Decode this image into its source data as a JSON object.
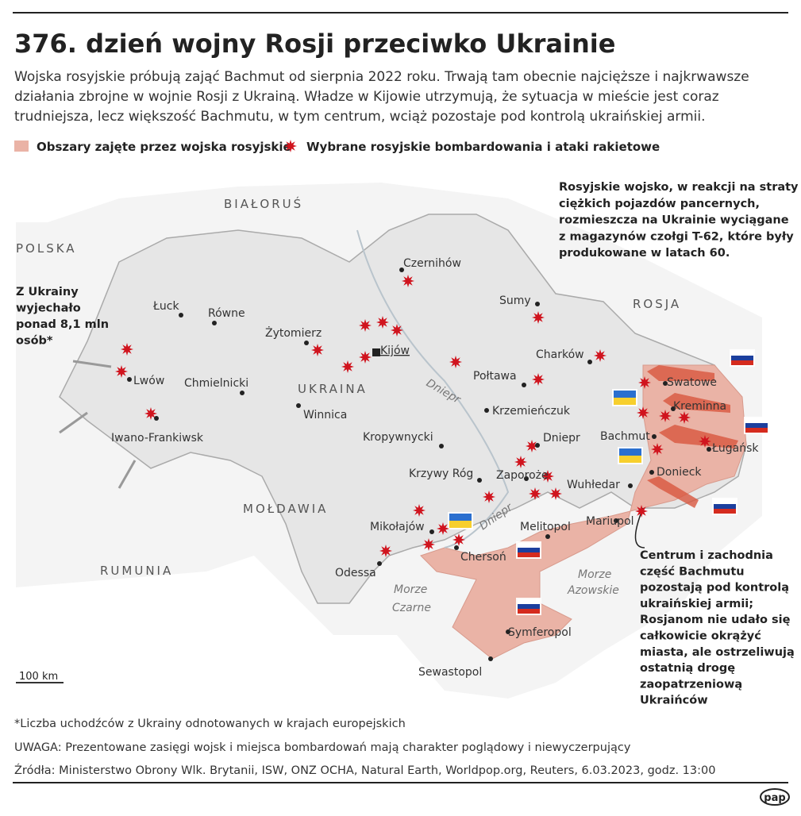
{
  "header": {
    "title": "376. dzień wojny Rosji przeciwko Ukrainie",
    "subtitle_lines": [
      "Wojska rosyjskie próbują zająć Bachmut od sierpnia 2022 roku. Trwają tam obecnie najcięższe i najkrwawsze",
      "działania zbrojne w wojnie Rosji z Ukrainą. Władze w Kijowie utrzymują, że sytuacja w mieście jest coraz",
      "trudniejsza, lecz większość Bachmutu, w tym centrum, wciąż pozostaje pod kontrolą ukraińskiej armii."
    ]
  },
  "legend": {
    "occupied": "Obszary zajęte przez wojska rosyjskie",
    "strikes": "Wybrane rosyjskie bombardowania i ataki rakietowe"
  },
  "countries": {
    "belarus": "BIAŁORUŚ",
    "poland": "POLSKA",
    "russia": "ROSJA",
    "ukraine": "UKRAINA",
    "moldova": "MOŁDAWIA",
    "romania": "RUMUNIA"
  },
  "cities": [
    "Łuck",
    "Równe",
    "Żytomierz",
    "Kijów",
    "Czernihów",
    "Sumy",
    "Charków",
    "Połtawa",
    "Lwów",
    "Chmielnicki",
    "Winnica",
    "Iwano-Frankiwsk",
    "Krzemieńczuk",
    "Kropywnycki",
    "Dniepr",
    "Krzywy Róg",
    "Zaporoże",
    "Wuhłedar",
    "Bachmut",
    "Swatowe",
    "Kreminna",
    "Ługańsk",
    "Donieck",
    "Mariupol",
    "Melitopol",
    "Mikołajów",
    "Chersoń",
    "Odessa",
    "Symferopol",
    "Sewastopol"
  ],
  "water": {
    "river": "Dniepr",
    "black_sea": [
      "Morze",
      "Czarne"
    ],
    "azov_sea": [
      "Morze",
      "Azowskie"
    ]
  },
  "annotations": {
    "tanks": [
      "Rosyjskie wojsko, w reakcji na straty",
      "ciężkich pojazdów pancernych,",
      "rozmieszcza na Ukrainie wyciągane",
      "z magazynów czołgi T-62, które były",
      "produkowane w latach 60."
    ],
    "refugees": [
      "Z Ukrainy",
      "wyjechało",
      "ponad 8,1 mln",
      "osób*"
    ],
    "bachmut": [
      "Centrum i zachodnia",
      "część Bachmutu",
      "pozostają pod kontrolą",
      "ukraińskiej armii;",
      "Rosjanom nie udało się",
      "całkowicie okrążyć",
      "miasta, ale ostrzeliwują",
      "ostatnią drogę",
      "zaopatrzeniową",
      "Ukraińców"
    ]
  },
  "scale": "100 km",
  "footer": [
    "*Liczba uchodźców z Ukrainy odnotowanych w krajach europejskich",
    "UWAGA: Prezentowane zasięgi wojsk i miejsca bombardowań mają charakter poglądowy i niewyczerpujący",
    "Źródła: Ministerstwo Obrony Wlk. Brytanii, ISW, ONZ OCHA, Natural Earth, Worldpop.org, Reuters, 6.03.2023, godz. 13:00"
  ],
  "logo": "pap"
}
